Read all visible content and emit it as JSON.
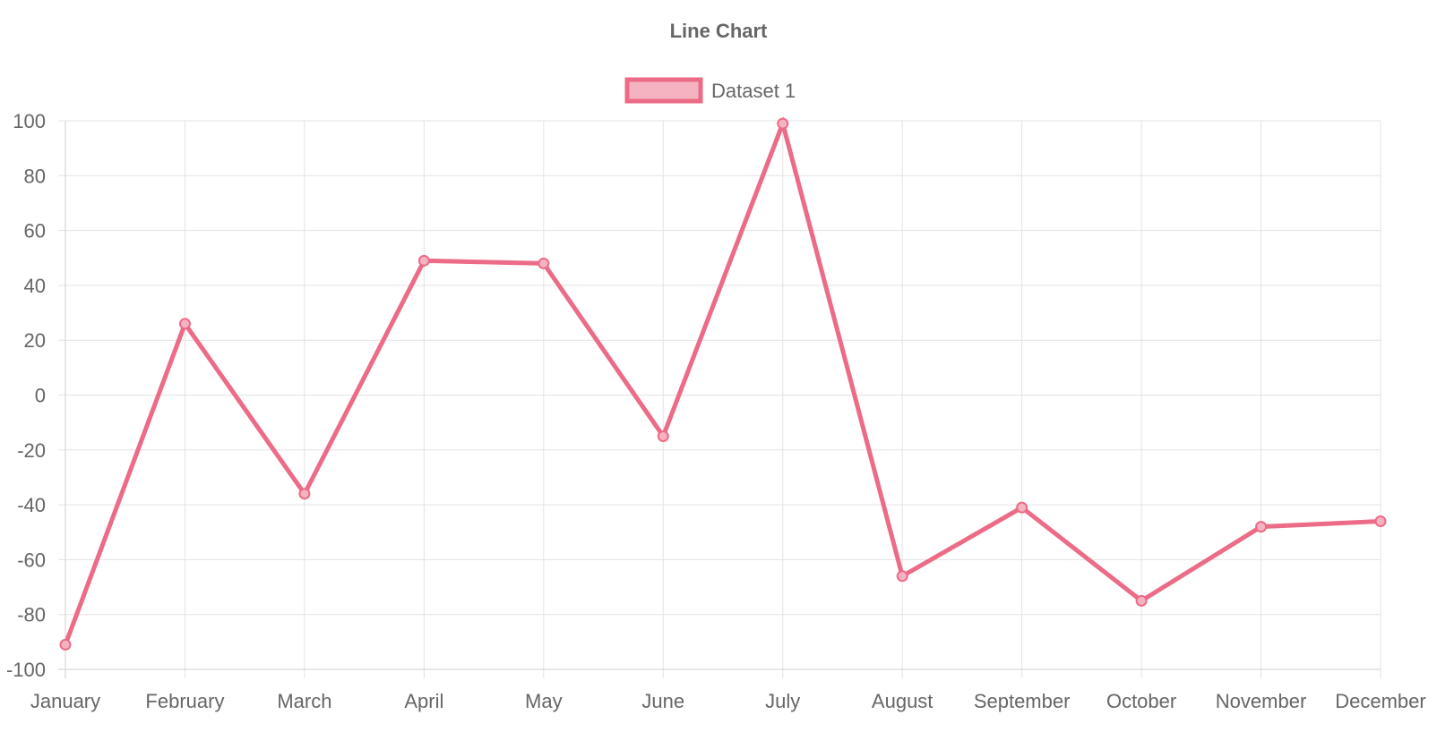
{
  "chart_data": {
    "type": "line",
    "title": "Line Chart",
    "xlabel": "",
    "ylabel": "",
    "categories": [
      "January",
      "February",
      "March",
      "April",
      "May",
      "June",
      "July",
      "August",
      "September",
      "October",
      "November",
      "December"
    ],
    "series": [
      {
        "name": "Dataset 1",
        "values": [
          -91,
          26,
          -36,
          49,
          48,
          -15,
          99,
          -66,
          -41,
          -75,
          -48,
          -46
        ],
        "color": "#ec6b86",
        "fill_color": "#f5b3c1"
      }
    ],
    "ylim": [
      -100,
      100
    ],
    "y_ticks": [
      "100",
      "80",
      "60",
      "40",
      "20",
      "0",
      "-20",
      "-40",
      "-60",
      "-80",
      "-100"
    ],
    "grid": true,
    "legend_position": "top-center"
  }
}
